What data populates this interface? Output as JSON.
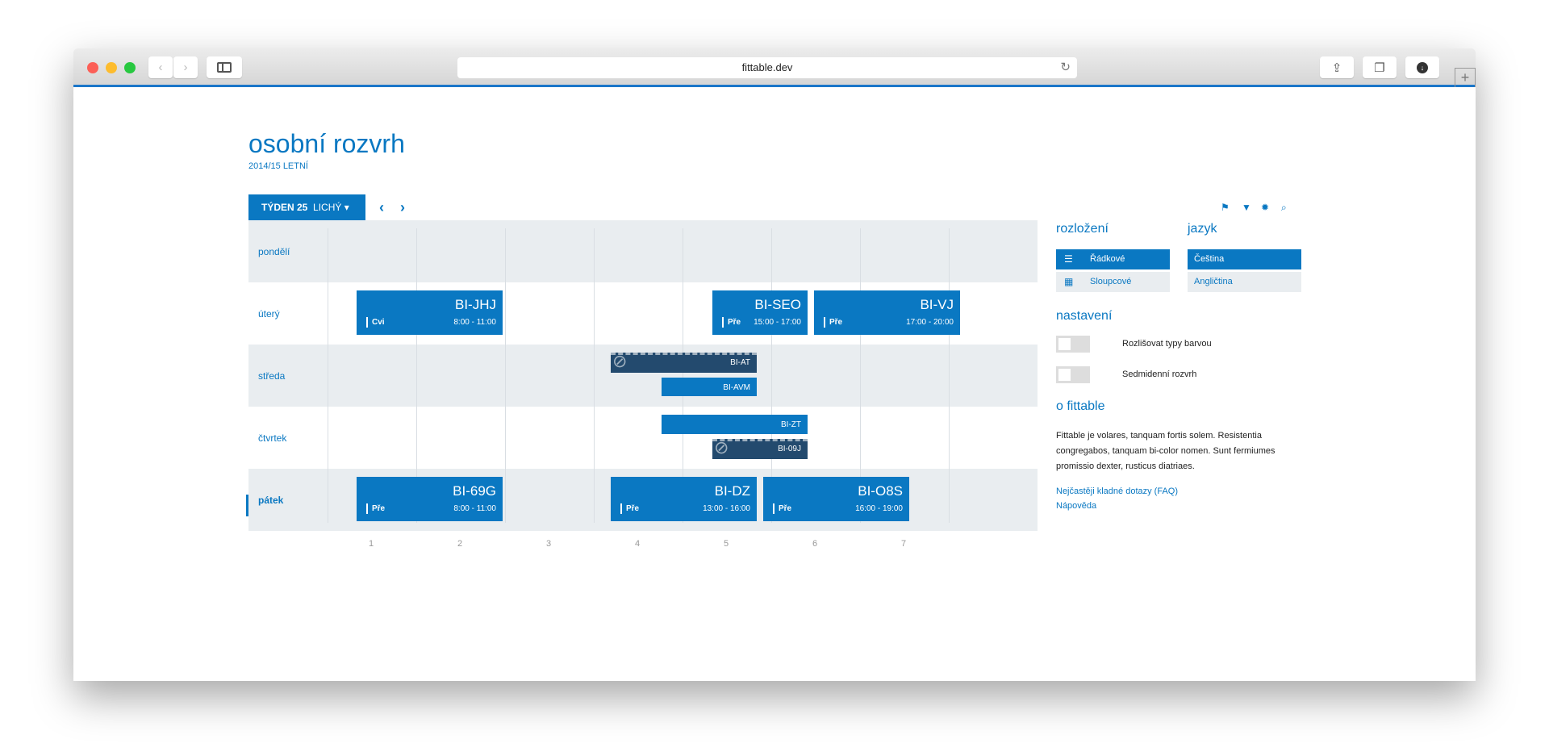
{
  "browser": {
    "url": "fittable.dev"
  },
  "header": {
    "title": "osobní rozvrh",
    "semester": "2014/15 LETNÍ"
  },
  "week": {
    "label": "TÝDEN 25",
    "parity": "LICHÝ"
  },
  "days": [
    "pondělí",
    "úterý",
    "středa",
    "čtvrtek",
    "pátek"
  ],
  "active_day": "pátek",
  "hours": [
    "1",
    "2",
    "3",
    "4",
    "5",
    "6",
    "7"
  ],
  "events": [
    {
      "day": 1,
      "code": "BI-JHJ",
      "type": "Cvi",
      "time": "8:00 - 11:00"
    },
    {
      "day": 1,
      "code": "BI-SEO",
      "type": "Pře",
      "time": "15:00 - 17:00"
    },
    {
      "day": 1,
      "code": "BI-VJ",
      "type": "Pře",
      "time": "17:00 - 20:00"
    },
    {
      "day": 4,
      "code": "BI-69G",
      "type": "Pře",
      "time": "8:00 - 11:00"
    },
    {
      "day": 4,
      "code": "BI-DZ",
      "type": "Pře",
      "time": "13:00 - 16:00"
    },
    {
      "day": 4,
      "code": "BI-O8S",
      "type": "Pře",
      "time": "16:00 - 19:00"
    }
  ],
  "small_events": [
    {
      "day": 2,
      "code": "BI-AT",
      "cancelled": true
    },
    {
      "day": 2,
      "code": "BI-AVM",
      "cancelled": false
    },
    {
      "day": 3,
      "code": "BI-ZT",
      "cancelled": false
    },
    {
      "day": 3,
      "code": "BI-09J",
      "cancelled": true
    }
  ],
  "panel": {
    "layout_title": "rozložení",
    "layout_options": [
      "Řádkové",
      "Sloupcové"
    ],
    "layout_selected": "Řádkové",
    "lang_title": "jazyk",
    "lang_options": [
      "Čeština",
      "Angličtina"
    ],
    "lang_selected": "Čeština",
    "settings_title": "nastavení",
    "settings": [
      {
        "label": "Rozlišovat typy barvou",
        "on": false
      },
      {
        "label": "Sedmidenní rozvrh",
        "on": false
      }
    ],
    "about_title": "o fittable",
    "about_text": "Fittable je volares, tanquam fortis solem. Resistentia congregabos, tanquam bi-color nomen. Sunt fermiumes promissio dexter, rusticus diatriaes.",
    "links": [
      "Nejčastěji kladné dotazy (FAQ)",
      "Nápověda"
    ]
  },
  "colors": {
    "accent": "#0a78c2",
    "cancelled": "#234a6e",
    "row": "#e9edf0"
  }
}
